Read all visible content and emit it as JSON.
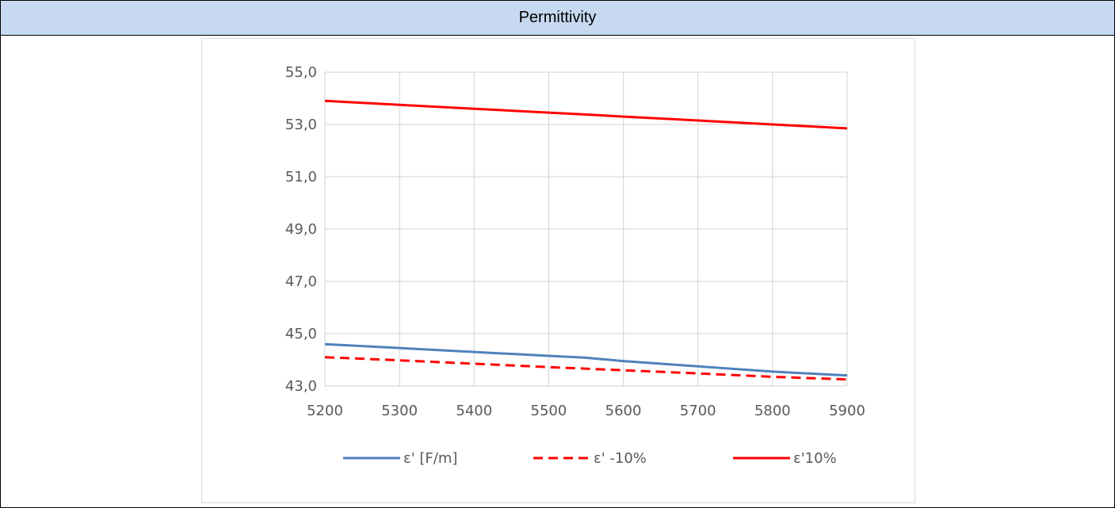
{
  "header": {
    "title": "Permittivity",
    "background": "#c6d9f1"
  },
  "chart_data": {
    "type": "line",
    "title": "",
    "xlabel": "",
    "ylabel": "",
    "x": [
      5200,
      5300,
      5400,
      5500,
      5550,
      5600,
      5700,
      5800,
      5900
    ],
    "xlim": [
      5200,
      5900
    ],
    "ylim": [
      43.0,
      55.0
    ],
    "xticks": [
      "5200",
      "5300",
      "5400",
      "5500",
      "5600",
      "5700",
      "5800",
      "5900"
    ],
    "yticks": [
      "43,0",
      "45,0",
      "47,0",
      "49,0",
      "51,0",
      "53,0",
      "55,0"
    ],
    "grid": true,
    "legend_position": "bottom",
    "series": [
      {
        "name": "ε' [F/m]",
        "color": "#4f81bd",
        "style": "solid",
        "values": [
          44.6,
          44.45,
          44.3,
          44.15,
          44.08,
          43.95,
          43.75,
          43.55,
          43.4
        ]
      },
      {
        "name": "ε' -10%",
        "color": "#ff0000",
        "style": "dashed",
        "values": [
          44.1,
          43.98,
          43.85,
          43.72,
          43.66,
          43.6,
          43.48,
          43.35,
          43.25
        ]
      },
      {
        "name": "ε'10%",
        "color": "#ff0000",
        "style": "solid",
        "values": [
          53.9,
          53.75,
          53.6,
          53.45,
          53.38,
          53.3,
          53.15,
          53.0,
          52.85
        ]
      }
    ]
  }
}
